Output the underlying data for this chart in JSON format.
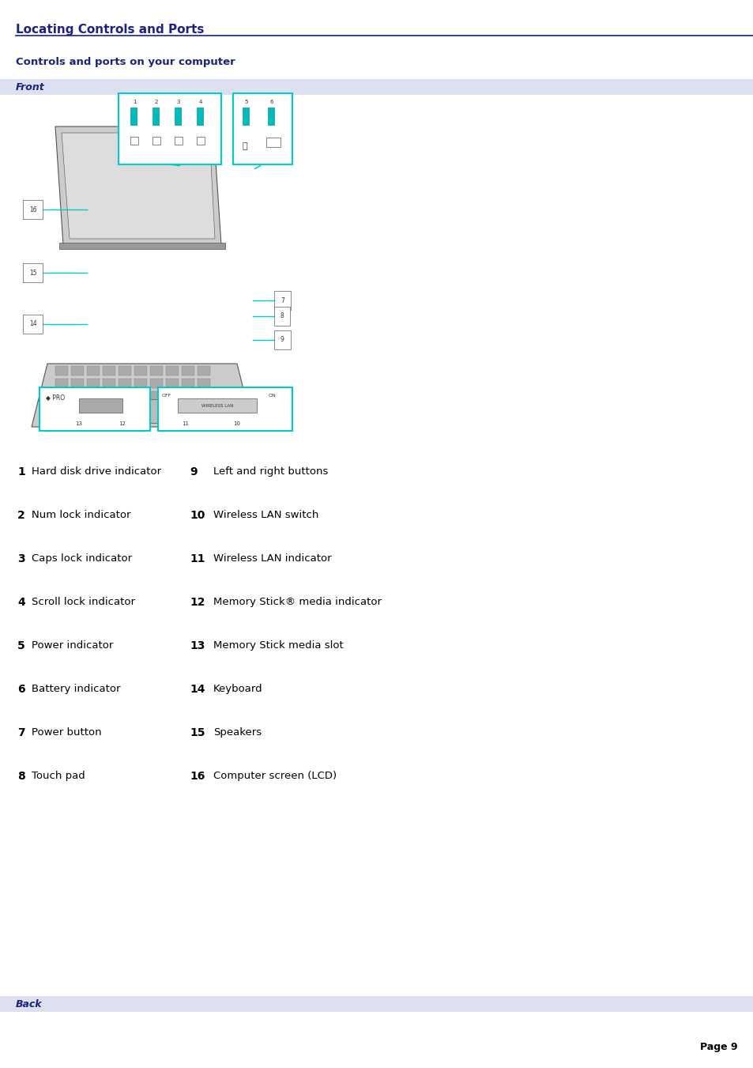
{
  "title": "Locating Controls and Ports",
  "subtitle": "Controls and ports on your computer",
  "section_front": "Front",
  "section_back": "Back",
  "page_number": "Page 9",
  "title_color": "#1a237e",
  "title_line_color": "#1a237e",
  "subtitle_color": "#1a237e",
  "section_bg_color": "#dde0f0",
  "section_text_color": "#1a237e",
  "body_text_color": "#000000",
  "background_color": "#ffffff",
  "items_left": [
    {
      "num": "1",
      "desc": "Hard disk drive indicator"
    },
    {
      "num": "2",
      "desc": "Num lock indicator"
    },
    {
      "num": "3",
      "desc": "Caps lock indicator"
    },
    {
      "num": "4",
      "desc": "Scroll lock indicator"
    },
    {
      "num": "5",
      "desc": "Power indicator"
    },
    {
      "num": "6",
      "desc": "Battery indicator"
    },
    {
      "num": "7",
      "desc": "Power button"
    },
    {
      "num": "8",
      "desc": "Touch pad"
    }
  ],
  "items_right": [
    {
      "num": "9",
      "desc": "Left and right buttons"
    },
    {
      "num": "10",
      "desc": "Wireless LAN switch"
    },
    {
      "num": "11",
      "desc": "Wireless LAN indicator"
    },
    {
      "num": "12",
      "desc": "Memory Stick® media indicator"
    },
    {
      "num": "13",
      "desc": "Memory Stick media slot"
    },
    {
      "num": "14",
      "desc": "Keyboard"
    },
    {
      "num": "15",
      "desc": "Speakers"
    },
    {
      "num": "16",
      "desc": "Computer screen (LCD)"
    }
  ],
  "fig_width": 9.54,
  "fig_height": 13.51,
  "dpi": 100
}
